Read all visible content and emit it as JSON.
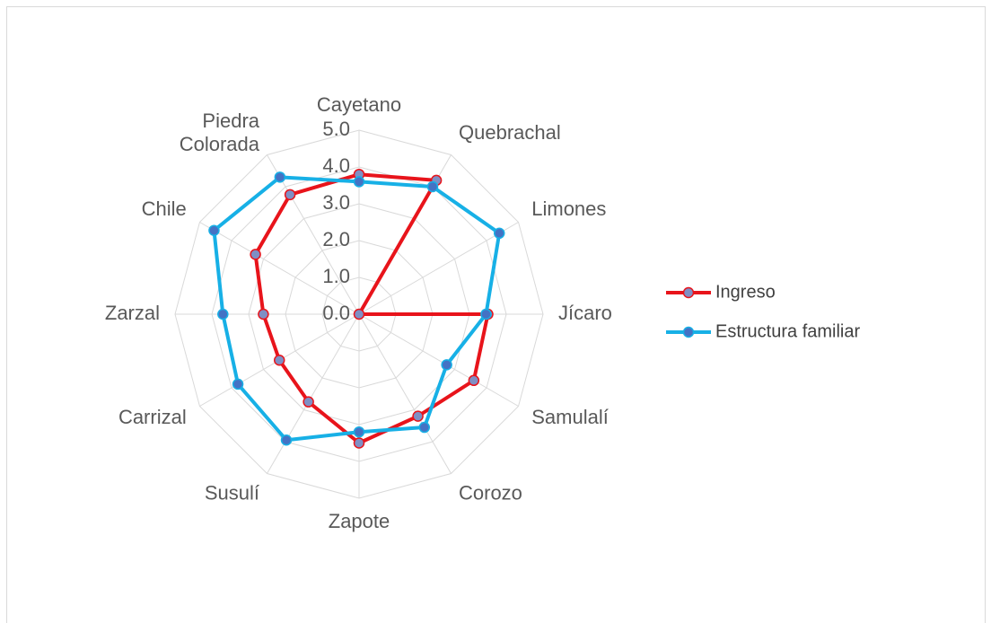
{
  "chart_data": {
    "type": "radar",
    "categories": [
      "Cayetano",
      "Quebrachal",
      "Limones",
      "Jícaro",
      "Samulalí",
      "Corozo",
      "Zapote",
      "Susulí",
      "Carrizal",
      "Zarzal",
      "Chile",
      "Piedra Colorada"
    ],
    "series": [
      {
        "name": "Ingreso",
        "color": "#e8141b",
        "marker_color": "#7f8fc4",
        "values": [
          3.8,
          4.2,
          0,
          3.5,
          3.6,
          3.2,
          3.5,
          2.75,
          2.5,
          2.6,
          3.25,
          3.75
        ]
      },
      {
        "name": "Estructura familiar",
        "color": "#17b0e6",
        "marker_color": "#4472c4",
        "values": [
          3.6,
          4.0,
          4.4,
          3.45,
          2.75,
          3.55,
          3.2,
          3.95,
          3.8,
          3.7,
          4.55,
          4.3
        ]
      }
    ],
    "ylim": [
      0,
      5
    ],
    "yticks": [
      {
        "value": 0,
        "label": "0.0"
      },
      {
        "value": 1,
        "label": "1.0"
      },
      {
        "value": 2,
        "label": "2.0"
      },
      {
        "value": 3,
        "label": "3.0"
      },
      {
        "value": 4,
        "label": "4.0"
      },
      {
        "value": 5,
        "label": "5.0"
      }
    ],
    "grid": true,
    "legend": "right"
  }
}
